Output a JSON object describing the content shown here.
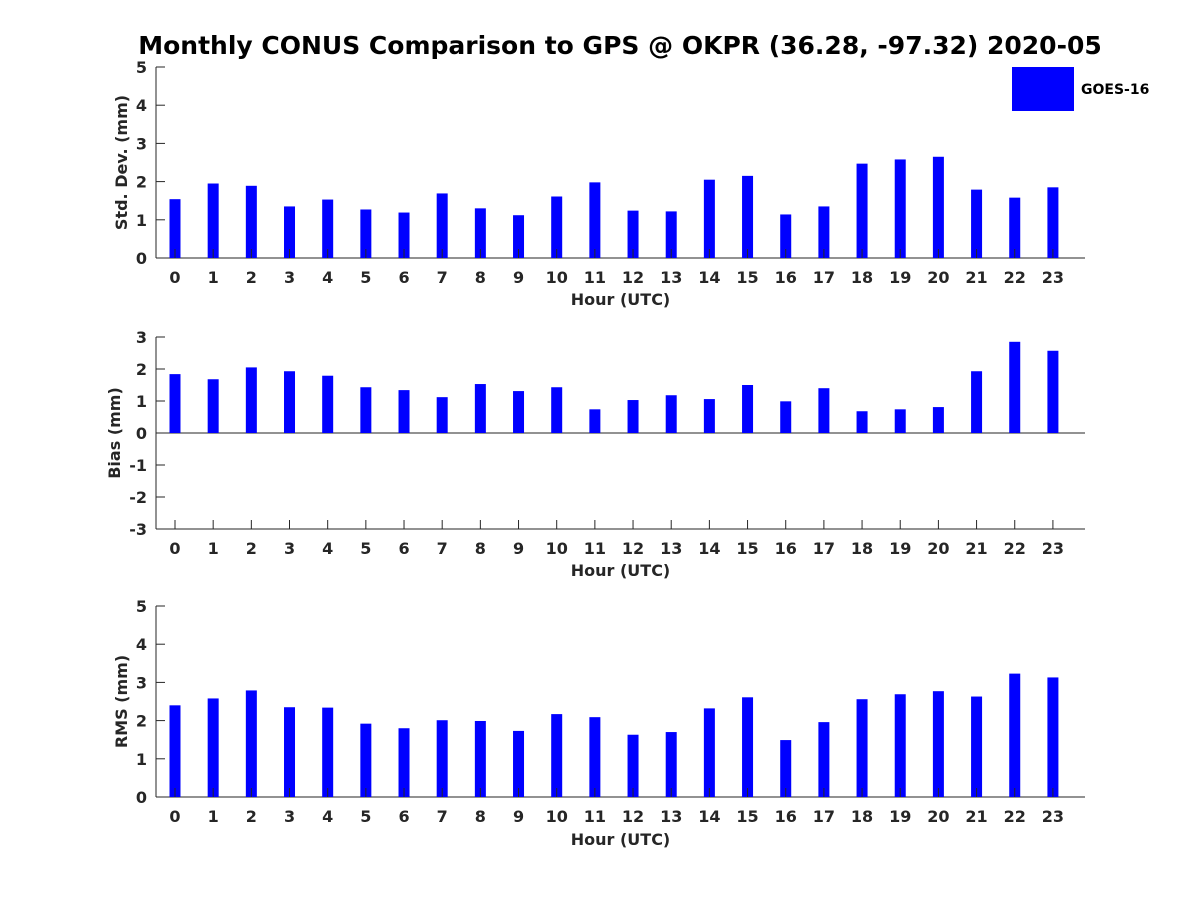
{
  "title": "Monthly CONUS Comparison to GPS @ OKPR (36.28, -97.32) 2020-05",
  "legend": {
    "label": "GOES-16",
    "color": "#0000ff"
  },
  "chart_data": [
    {
      "type": "bar",
      "id": "stddev",
      "ylabel": "Std. Dev. (mm)",
      "xlabel": "Hour (UTC)",
      "categories": [
        "0",
        "1",
        "2",
        "3",
        "4",
        "5",
        "6",
        "7",
        "8",
        "9",
        "10",
        "11",
        "12",
        "13",
        "14",
        "15",
        "16",
        "17",
        "18",
        "19",
        "20",
        "21",
        "22",
        "23"
      ],
      "series": [
        {
          "name": "GOES-16",
          "values": [
            1.54,
            1.95,
            1.89,
            1.35,
            1.53,
            1.27,
            1.19,
            1.69,
            1.3,
            1.12,
            1.61,
            1.98,
            1.24,
            1.22,
            2.05,
            2.15,
            1.14,
            1.35,
            2.47,
            2.58,
            2.65,
            1.79,
            1.58,
            1.85
          ]
        }
      ],
      "ylim": [
        0,
        5
      ],
      "yticks": [
        "0",
        "1",
        "2",
        "3",
        "4",
        "5"
      ]
    },
    {
      "type": "bar",
      "id": "bias",
      "ylabel": "Bias (mm)",
      "xlabel": "Hour (UTC)",
      "categories": [
        "0",
        "1",
        "2",
        "3",
        "4",
        "5",
        "6",
        "7",
        "8",
        "9",
        "10",
        "11",
        "12",
        "13",
        "14",
        "15",
        "16",
        "17",
        "18",
        "19",
        "20",
        "21",
        "22",
        "23"
      ],
      "series": [
        {
          "name": "GOES-16",
          "values": [
            1.84,
            1.68,
            2.05,
            1.93,
            1.79,
            1.43,
            1.34,
            1.12,
            1.53,
            1.31,
            1.43,
            0.74,
            1.03,
            1.18,
            1.06,
            1.5,
            0.99,
            1.4,
            0.68,
            0.74,
            0.81,
            1.93,
            2.85,
            2.57
          ]
        }
      ],
      "ylim": [
        -3,
        3
      ],
      "yticks": [
        "-3",
        "-2",
        "-1",
        "0",
        "1",
        "2",
        "3"
      ]
    },
    {
      "type": "bar",
      "id": "rms",
      "ylabel": "RMS (mm)",
      "xlabel": "Hour (UTC)",
      "categories": [
        "0",
        "1",
        "2",
        "3",
        "4",
        "5",
        "6",
        "7",
        "8",
        "9",
        "10",
        "11",
        "12",
        "13",
        "14",
        "15",
        "16",
        "17",
        "18",
        "19",
        "20",
        "21",
        "22",
        "23"
      ],
      "series": [
        {
          "name": "GOES-16",
          "values": [
            2.4,
            2.58,
            2.79,
            2.35,
            2.34,
            1.92,
            1.8,
            2.01,
            1.99,
            1.73,
            2.17,
            2.09,
            1.63,
            1.7,
            2.32,
            2.61,
            1.49,
            1.96,
            2.56,
            2.69,
            2.77,
            2.63,
            3.23,
            3.13
          ]
        }
      ],
      "ylim": [
        0,
        5
      ],
      "yticks": [
        "0",
        "1",
        "2",
        "3",
        "4",
        "5"
      ]
    }
  ]
}
